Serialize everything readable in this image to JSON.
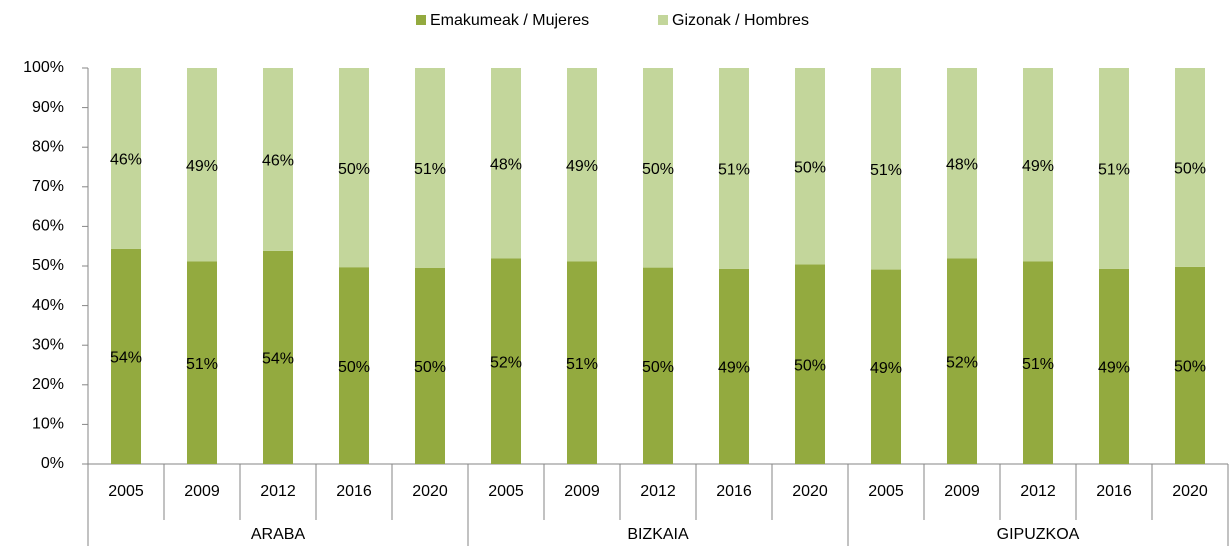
{
  "chart_data": {
    "type": "bar",
    "stacked": true,
    "categories": [
      "2005",
      "2009",
      "2012",
      "2016",
      "2020",
      "2005",
      "2009",
      "2012",
      "2016",
      "2020",
      "2005",
      "2009",
      "2012",
      "2016",
      "2020"
    ],
    "groups": [
      "ARABA",
      "BIZKAIA",
      "GIPUZKOA"
    ],
    "series": [
      {
        "name": "Emakumeak / Mujeres",
        "color": "#93aa3f",
        "values": [
          54.3,
          51.2,
          53.8,
          49.7,
          49.5,
          51.9,
          51.2,
          49.6,
          49.3,
          50.4,
          49.1,
          51.9,
          51.2,
          49.3,
          49.8
        ],
        "value_labels": [
          "54%",
          "51%",
          "54%",
          "50%",
          "50%",
          "52%",
          "51%",
          "50%",
          "49%",
          "50%",
          "49%",
          "52%",
          "51%",
          "49%",
          "50%"
        ]
      },
      {
        "name": "Gizonak / Hombres",
        "color": "#c3d69b",
        "values": [
          45.7,
          48.8,
          46.2,
          50.3,
          50.5,
          48.1,
          48.8,
          50.4,
          50.7,
          49.6,
          50.9,
          48.1,
          48.8,
          50.7,
          50.2
        ],
        "value_labels": [
          "46%",
          "49%",
          "46%",
          "50%",
          "51%",
          "48%",
          "49%",
          "50%",
          "51%",
          "50%",
          "51%",
          "48%",
          "49%",
          "51%",
          "50%"
        ]
      }
    ],
    "ylim": [
      0,
      100
    ],
    "yticks": [
      {
        "value": 0,
        "label": "0%"
      },
      {
        "value": 10,
        "label": "10%"
      },
      {
        "value": 20,
        "label": "20%"
      },
      {
        "value": 30,
        "label": "30%"
      },
      {
        "value": 40,
        "label": "40%"
      },
      {
        "value": 50,
        "label": "50%"
      },
      {
        "value": 60,
        "label": "60%"
      },
      {
        "value": 70,
        "label": "70%"
      },
      {
        "value": 80,
        "label": "80%"
      },
      {
        "value": 90,
        "label": "90%"
      },
      {
        "value": 100,
        "label": "100%"
      }
    ],
    "legend": "top",
    "grid": false
  }
}
